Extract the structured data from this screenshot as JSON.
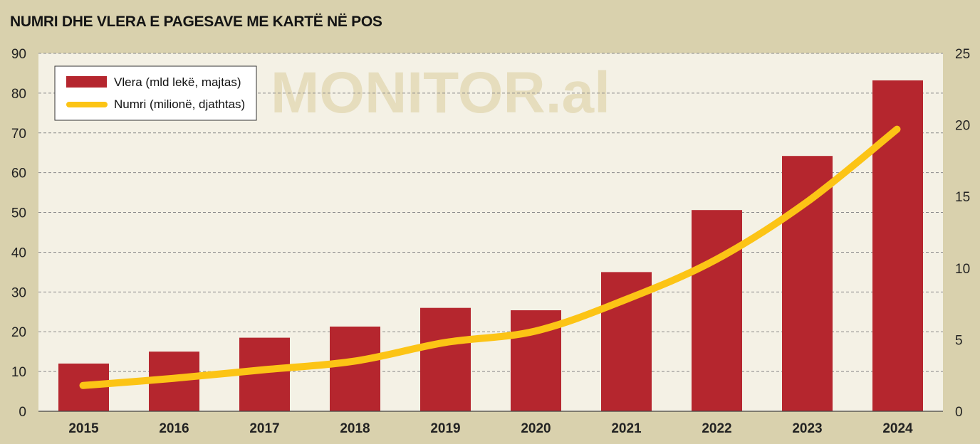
{
  "chart_data": {
    "type": "bar",
    "title": "NUMRI DHE VLERA E PAGESAVE ME KARTË NË POS",
    "watermark": "MONITOR.al",
    "categories": [
      "2015",
      "2016",
      "2017",
      "2018",
      "2019",
      "2020",
      "2021",
      "2022",
      "2023",
      "2024"
    ],
    "series": [
      {
        "name": "Vlera (mld lekë, majtas)",
        "type": "bar",
        "axis": "left",
        "color": "#b5262e",
        "values": [
          12,
          15,
          18.5,
          21.3,
          26,
          25.4,
          35,
          50.6,
          64.2,
          83.2
        ]
      },
      {
        "name": "Numri (milionë, djathtas)",
        "type": "line",
        "axis": "right",
        "color": "#fcc415",
        "values": [
          1.8,
          2.3,
          2.9,
          3.5,
          4.8,
          5.6,
          7.8,
          10.6,
          14.6,
          19.7
        ]
      }
    ],
    "ylim_left": [
      0,
      90
    ],
    "yticks_left": [
      0,
      10,
      20,
      30,
      40,
      50,
      60,
      70,
      80,
      90
    ],
    "ylim_right": [
      0,
      25
    ],
    "yticks_right": [
      0,
      5,
      10,
      15,
      20,
      25
    ],
    "grid": true,
    "legend_position": "top-left"
  }
}
